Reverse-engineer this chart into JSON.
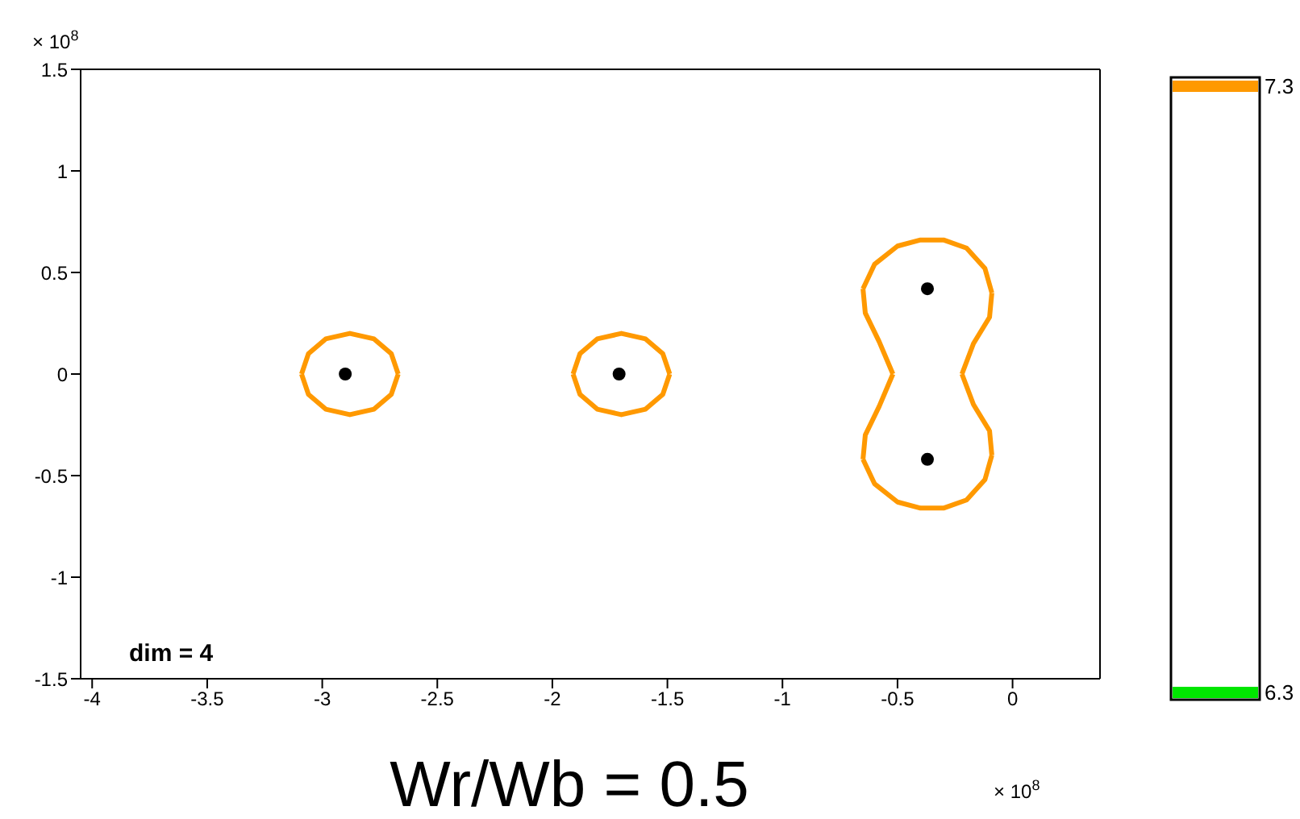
{
  "chart_data": {
    "type": "scatter",
    "xlabel": "Wr/Wb = 0.5",
    "annotations": [
      "dim = 4",
      "× 10$^{8}$",
      "× 10$^{8}$"
    ],
    "xlim": [
      -4.05,
      0.38
    ],
    "xticks": [
      -4,
      -3.5,
      -3,
      -2.5,
      -2,
      -1.5,
      -1,
      -0.5,
      0
    ],
    "ylim": [
      -1.5,
      1.5
    ],
    "yticks": [
      -1.5,
      -1,
      -0.5,
      0,
      0.5,
      1,
      1.5
    ],
    "legend": "right",
    "series": [
      {
        "type": "line",
        "name": "7.3",
        "color": "#ff9900",
        "marker": "none",
        "x": [
          -3.09,
          -3.06,
          -2.985,
          -2.88,
          -2.775,
          -2.7,
          -2.67,
          null,
          -3.09,
          -3.06,
          -2.985,
          -2.88,
          -2.775,
          -2.7,
          -2.67,
          null,
          -1.91,
          -1.88,
          -1.805,
          -1.7,
          -1.595,
          -1.52,
          -1.49,
          null,
          -1.91,
          -1.88,
          -1.805,
          -1.7,
          -1.595,
          -1.52,
          -1.49,
          null,
          -0.65,
          -0.6,
          -0.5,
          -0.4,
          -0.3,
          -0.2,
          -0.12,
          -0.09,
          null,
          -0.65,
          -0.6,
          -0.5,
          -0.4,
          -0.3,
          -0.2,
          -0.12,
          -0.09,
          null,
          -0.65,
          -0.64,
          -0.58,
          -0.52,
          null,
          -0.65,
          -0.64,
          -0.58,
          -0.52,
          null,
          -0.22,
          -0.17,
          -0.1,
          -0.09,
          null,
          -0.22,
          -0.17,
          -0.1,
          -0.09
        ],
        "values": [
          0,
          0.1,
          0.173,
          0.2,
          0.173,
          0.1,
          0,
          null,
          0,
          -0.1,
          -0.173,
          -0.2,
          -0.173,
          -0.1,
          0,
          null,
          0,
          0.1,
          0.173,
          0.2,
          0.173,
          0.1,
          0,
          null,
          0,
          -0.1,
          -0.173,
          -0.2,
          -0.173,
          -0.1,
          0,
          null,
          0.42,
          0.54,
          0.63,
          0.66,
          0.66,
          0.62,
          0.52,
          0.4,
          null,
          -0.42,
          -0.54,
          -0.63,
          -0.66,
          -0.66,
          -0.62,
          -0.52,
          -0.4,
          null,
          0.42,
          0.3,
          0.16,
          0,
          null,
          -0.42,
          -0.3,
          -0.16,
          0,
          null,
          0,
          0.15,
          0.28,
          0.4,
          null,
          0,
          -0.15,
          -0.28,
          -0.4
        ]
      },
      {
        "type": "line",
        "name": "6.3",
        "color": "#00e600",
        "marker": "none"
      },
      {
        "color": "#000000",
        "marker": "circle",
        "x": [
          -2.9,
          -1.71,
          -0.37,
          -0.37
        ],
        "values": [
          0,
          0,
          0.42,
          -0.42
        ]
      }
    ]
  }
}
